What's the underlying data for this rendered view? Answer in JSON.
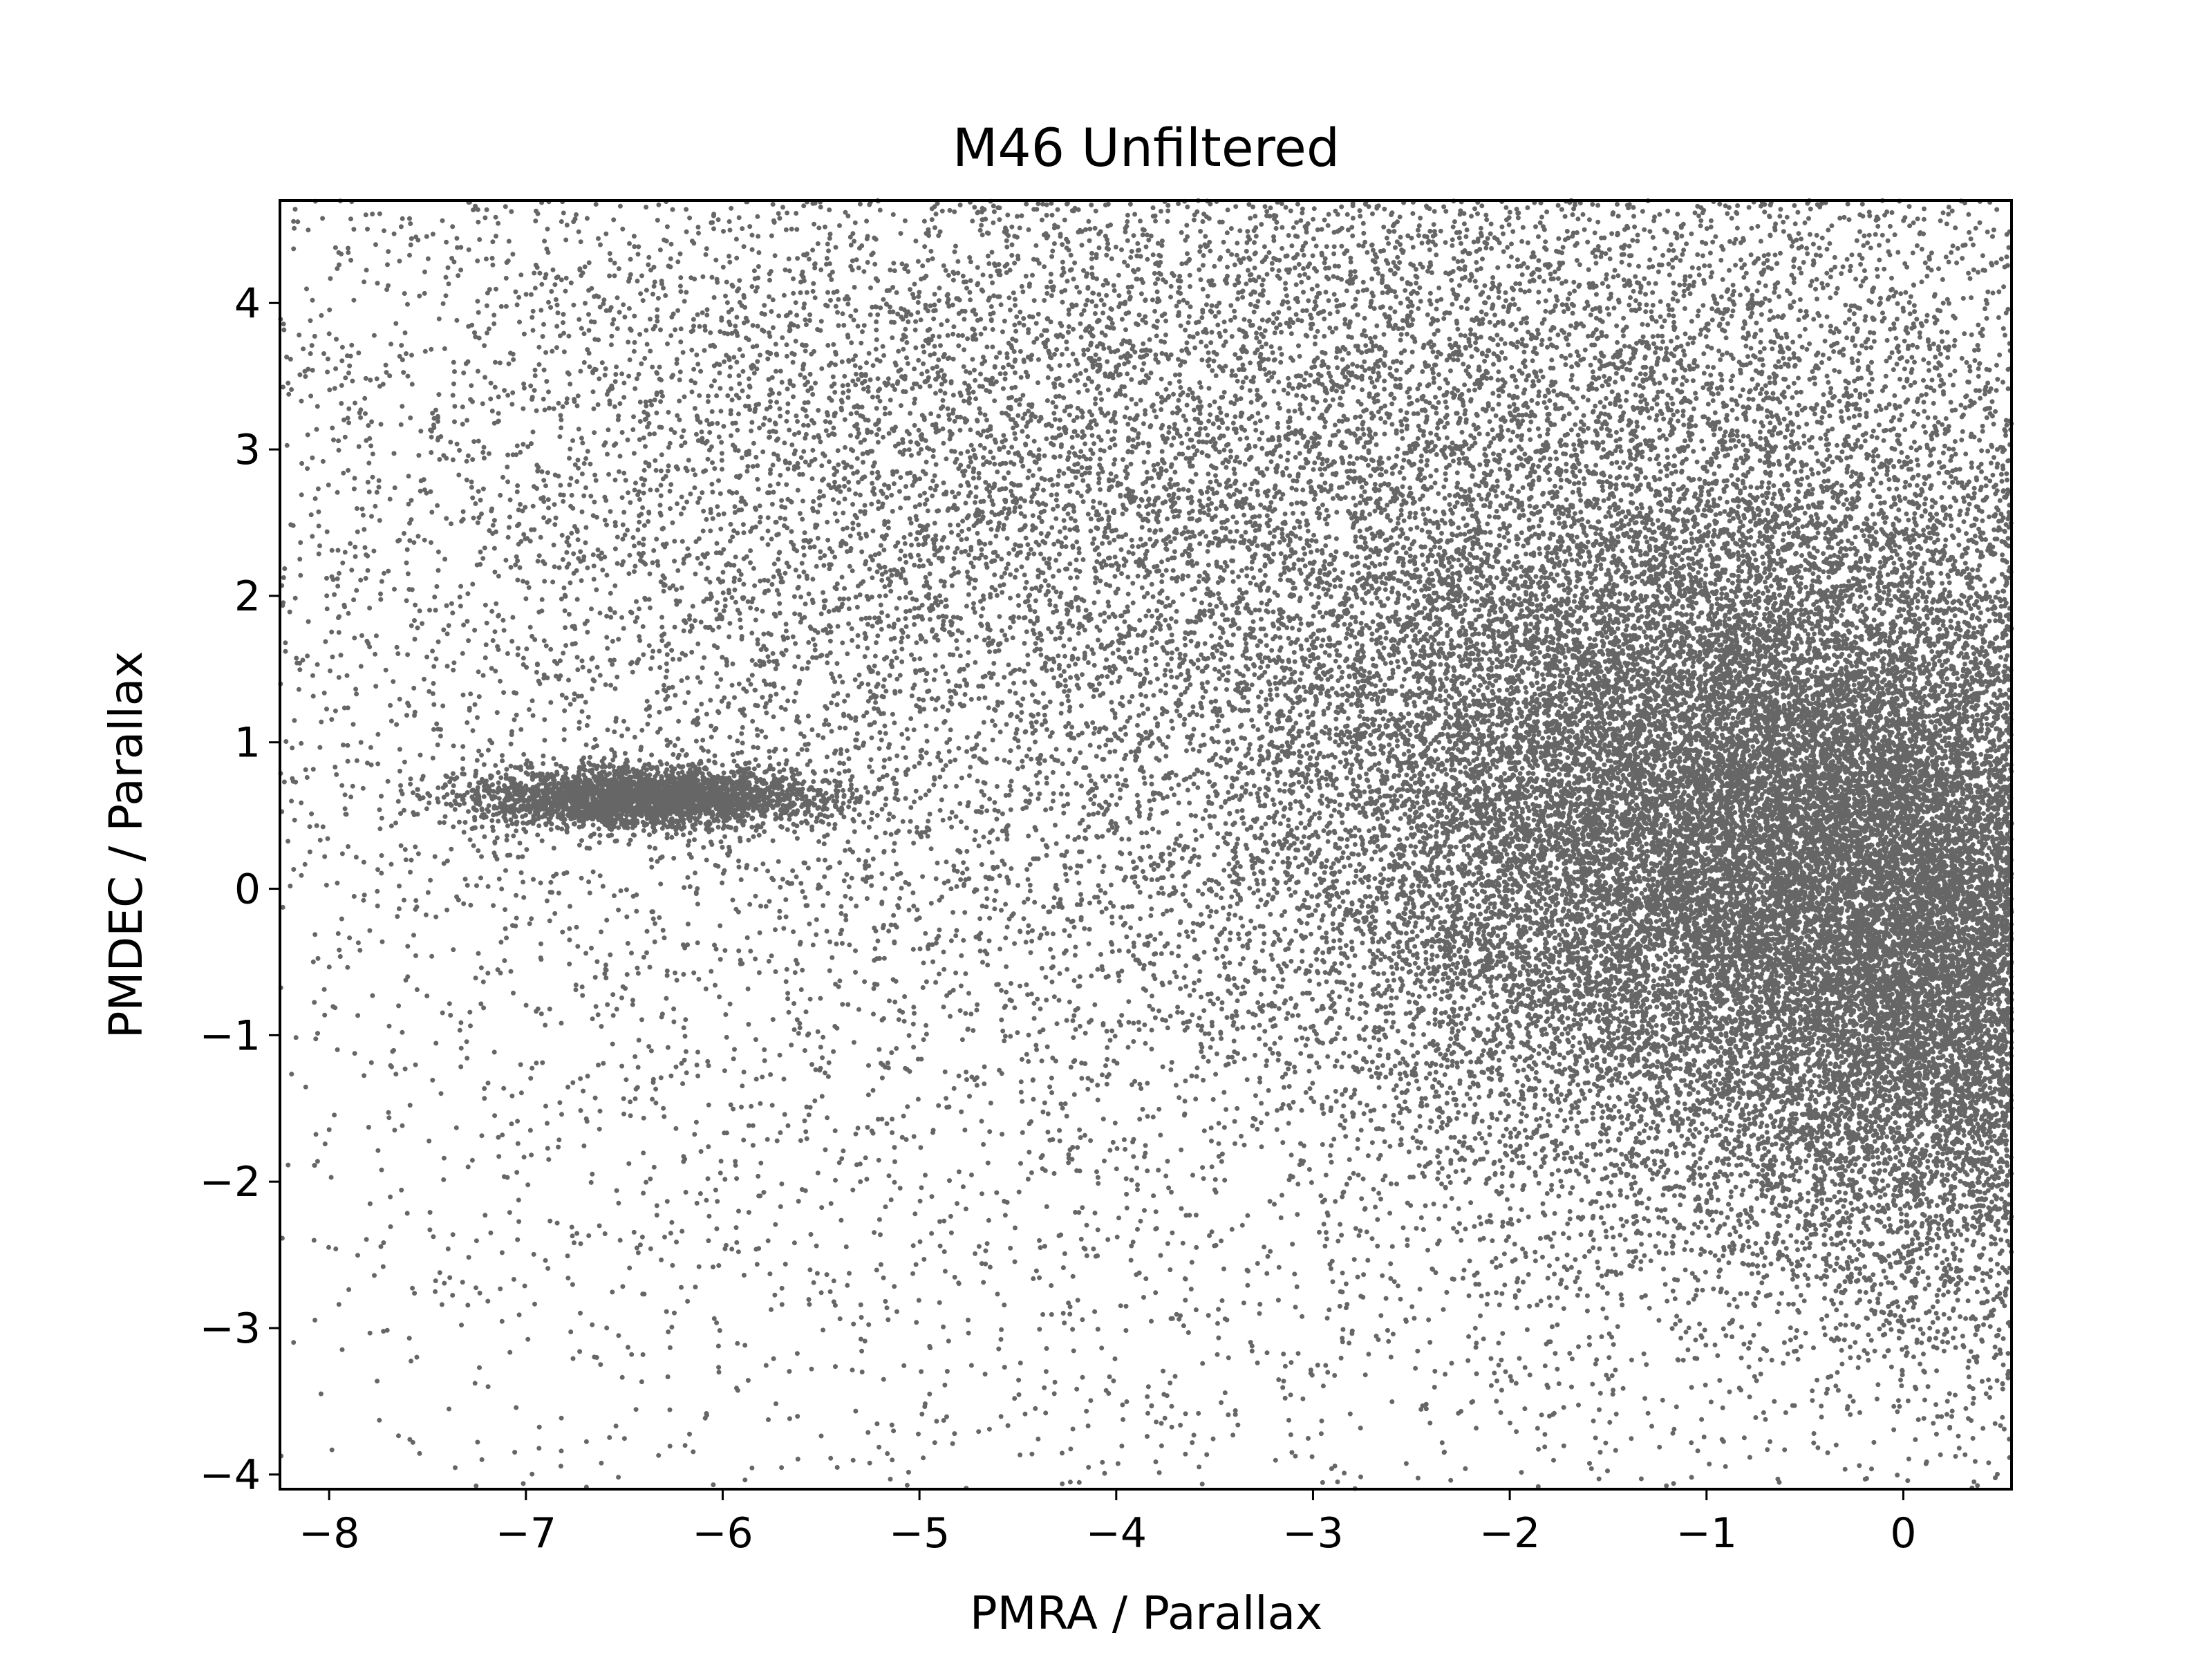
{
  "chart_data": {
    "type": "scatter",
    "title": "M46 Unfiltered",
    "xlabel": "PMRA / Parallax",
    "ylabel": "PMDEC / Parallax",
    "xlim": [
      -8.25,
      0.55
    ],
    "ylim": [
      -4.1,
      4.7
    ],
    "x_ticks": [
      -8,
      -7,
      -6,
      -5,
      -4,
      -3,
      -2,
      -1,
      0
    ],
    "x_tick_labels": [
      "−8",
      "−7",
      "−6",
      "−5",
      "−4",
      "−3",
      "−2",
      "−1",
      "0"
    ],
    "y_ticks": [
      -4,
      -3,
      -2,
      -1,
      0,
      1,
      2,
      3,
      4
    ],
    "y_tick_labels": [
      "−4",
      "−3",
      "−2",
      "−1",
      "0",
      "1",
      "2",
      "3",
      "4"
    ],
    "grid": false,
    "marker_color": "#666666",
    "approx_point_count": 60000,
    "point_cloud_components": [
      {
        "description": "broad background field population",
        "center": [
          -2.0,
          1.5
        ],
        "spread": [
          4.0,
          3.2
        ],
        "weight": 0.3
      },
      {
        "description": "dense field concentration",
        "center": [
          -0.9,
          0.4
        ],
        "spread": [
          1.1,
          1.2
        ],
        "weight": 0.32
      },
      {
        "description": "upper field extension",
        "center": [
          -3.0,
          3.0
        ],
        "spread": [
          2.6,
          1.6
        ],
        "weight": 0.18
      },
      {
        "description": "cluster clump",
        "center": [
          -6.4,
          0.62
        ],
        "spread": [
          0.45,
          0.1
        ],
        "weight": 0.05
      },
      {
        "description": "right-edge dense field",
        "center": [
          0.2,
          -0.6
        ],
        "spread": [
          0.6,
          1.2
        ],
        "weight": 0.15
      }
    ]
  }
}
